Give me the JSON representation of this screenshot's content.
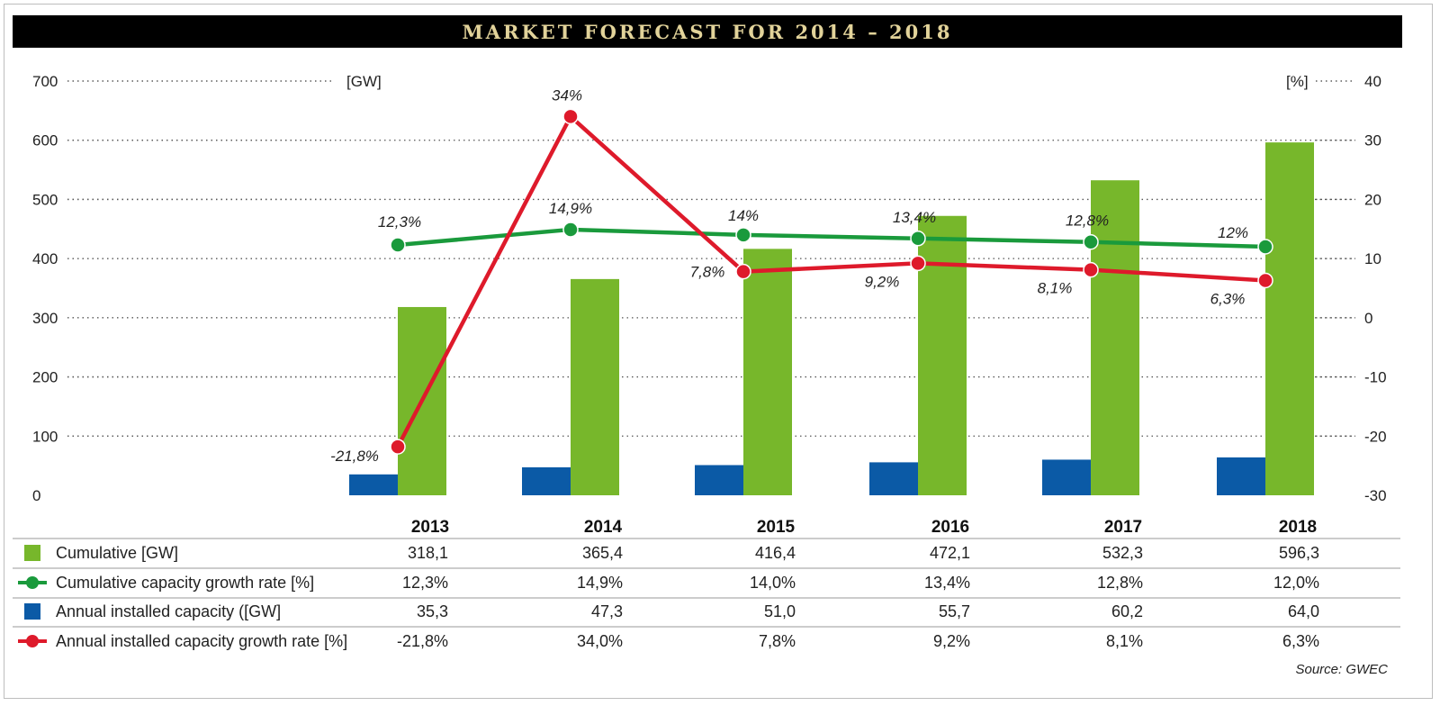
{
  "title": "MARKET FORECAST FOR 2014 – 2018",
  "source": "Source: GWEC",
  "colors": {
    "cumulative": "#77b72b",
    "annual": "#0b5aa6",
    "cumulative_growth": "#1a9a3c",
    "annual_growth": "#de1a2b",
    "title_bg": "#000000",
    "title_text": "#e2d39a"
  },
  "chart_data": {
    "type": "bar",
    "categories": [
      "2013",
      "2014",
      "2015",
      "2016",
      "2017",
      "2018"
    ],
    "left_axis": {
      "unit": "[GW]",
      "ylim": [
        0,
        700
      ],
      "ticks": [
        "700",
        "600",
        "500",
        "400",
        "300",
        "200",
        "100",
        "0"
      ]
    },
    "right_axis": {
      "unit": "[%]",
      "ylim": [
        -30,
        40
      ],
      "ticks": [
        "40",
        "30",
        "20",
        "10",
        "0",
        "-10",
        "-20",
        "-30"
      ]
    },
    "grid": "dotted",
    "series": [
      {
        "name": "Cumulative [GW]",
        "type": "bar",
        "axis": "left",
        "values": [
          318.1,
          365.4,
          416.4,
          472.1,
          532.3,
          596.3
        ],
        "table": [
          "318,1",
          "365,4",
          "416,4",
          "472,1",
          "532,3",
          "596,3"
        ]
      },
      {
        "name": "Cumulative capacity growth rate [%]",
        "type": "line",
        "axis": "right",
        "values": [
          12.3,
          14.9,
          14.0,
          13.4,
          12.8,
          12.0
        ],
        "point_labels": [
          "12,3%",
          "14,9%",
          "14%",
          "13,4%",
          "12,8%",
          "12%"
        ],
        "table": [
          "12,3%",
          "14,9%",
          "14,0%",
          "13,4%",
          "12,8%",
          "12,0%"
        ]
      },
      {
        "name": "Annual installed capacity ([GW]",
        "type": "bar",
        "axis": "left",
        "values": [
          35.3,
          47.3,
          51.0,
          55.7,
          60.2,
          64.0
        ],
        "table": [
          "35,3",
          "47,3",
          "51,0",
          "55,7",
          "60,2",
          "64,0"
        ]
      },
      {
        "name": "Annual installed capacity growth rate [%]",
        "type": "line",
        "axis": "right",
        "values": [
          -21.8,
          34.0,
          7.8,
          9.2,
          8.1,
          6.3
        ],
        "point_labels": [
          "-21,8%",
          "34%",
          "7,8%",
          "9,2%",
          "8,1%",
          "6,3%"
        ],
        "table": [
          "-21,8%",
          "34,0%",
          "7,8%",
          "9,2%",
          "8,1%",
          "6,3%"
        ]
      }
    ]
  }
}
